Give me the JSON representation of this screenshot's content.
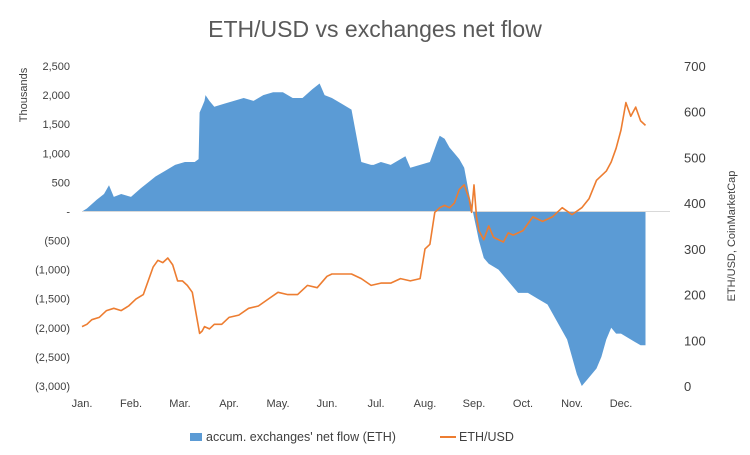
{
  "chart_data": {
    "type": "bar+line",
    "title": "ETH/USD vs exchanges net flow",
    "left_axis": {
      "label": "Thousands",
      "ylim": [
        -3000,
        2500
      ],
      "ticks": [
        2500,
        2000,
        1500,
        1000,
        500,
        0,
        -500,
        -1000,
        -1500,
        -2000,
        -2500,
        -3000
      ],
      "tick_labels": [
        "2,500",
        "2,000",
        "1,500",
        "1,000",
        "500",
        "-",
        "(500)",
        "(1,000)",
        "(1,500)",
        "(2,000)",
        "(2,500)",
        "(3,000)"
      ]
    },
    "right_axis": {
      "label": "ETH/USD, CoinMarketCap",
      "ylim": [
        0,
        700
      ],
      "ticks": [
        700,
        600,
        500,
        400,
        300,
        200,
        100,
        0
      ],
      "tick_labels": [
        "700",
        "600",
        "500",
        "400",
        "300",
        "200",
        "100",
        "0"
      ]
    },
    "x_axis": {
      "range": [
        0,
        12
      ],
      "categories": [
        "Jan.",
        "Feb.",
        "Mar.",
        "Apr.",
        "May.",
        "Jun.",
        "Jul.",
        "Aug.",
        "Sep.",
        "Oct.",
        "Nov.",
        "Dec."
      ]
    },
    "series": [
      {
        "name": "accum. exchanges' net flow (ETH)",
        "type": "area",
        "axis": "left",
        "color": "#5b9bd5",
        "x": [
          0,
          0.1,
          0.3,
          0.45,
          0.55,
          0.65,
          0.8,
          1.0,
          1.2,
          1.35,
          1.5,
          1.7,
          1.9,
          2.1,
          2.3,
          2.38,
          2.4,
          2.45,
          2.5,
          2.52,
          2.6,
          2.7,
          2.9,
          3.1,
          3.3,
          3.5,
          3.7,
          3.9,
          4.1,
          4.3,
          4.5,
          4.7,
          4.85,
          4.9,
          4.95,
          5.1,
          5.3,
          5.5,
          5.7,
          5.9,
          5.95,
          6.1,
          6.3,
          6.5,
          6.6,
          6.7,
          6.9,
          7.1,
          7.25,
          7.3,
          7.4,
          7.5,
          7.6,
          7.7,
          7.8,
          7.9,
          7.95,
          8.0,
          8.05,
          8.1,
          8.2,
          8.3,
          8.5,
          8.7,
          8.9,
          9.1,
          9.3,
          9.5,
          9.7,
          9.9,
          10.0,
          10.1,
          10.2,
          10.3,
          10.4,
          10.5,
          10.6,
          10.7,
          10.8,
          10.9,
          11.0,
          11.2,
          11.4,
          11.5
        ],
        "values": [
          0,
          50,
          200,
          300,
          450,
          250,
          300,
          250,
          400,
          500,
          600,
          700,
          800,
          850,
          850,
          900,
          1700,
          1800,
          1900,
          2000,
          1900,
          1800,
          1850,
          1900,
          1950,
          1900,
          2000,
          2050,
          2050,
          1950,
          1950,
          2100,
          2200,
          2100,
          2000,
          1950,
          1850,
          1750,
          850,
          800,
          800,
          850,
          800,
          900,
          950,
          750,
          800,
          850,
          1200,
          1300,
          1250,
          1100,
          1000,
          900,
          750,
          300,
          100,
          -100,
          -300,
          -500,
          -800,
          -900,
          -1000,
          -1200,
          -1400,
          -1400,
          -1500,
          -1600,
          -1900,
          -2200,
          -2500,
          -2800,
          -3000,
          -2900,
          -2800,
          -2700,
          -2500,
          -2200,
          -2000,
          -2100,
          -2100,
          -2200,
          -2300,
          -2300
        ]
      },
      {
        "name": "ETH/USD",
        "type": "line",
        "axis": "right",
        "color": "#ed7d31",
        "x": [
          0,
          0.1,
          0.2,
          0.35,
          0.5,
          0.65,
          0.8,
          0.95,
          1.1,
          1.25,
          1.35,
          1.45,
          1.55,
          1.65,
          1.75,
          1.85,
          1.95,
          2.05,
          2.15,
          2.25,
          2.4,
          2.45,
          2.5,
          2.6,
          2.7,
          2.85,
          3.0,
          3.2,
          3.4,
          3.6,
          3.8,
          4.0,
          4.2,
          4.4,
          4.6,
          4.8,
          5.0,
          5.1,
          5.3,
          5.5,
          5.7,
          5.9,
          6.1,
          6.3,
          6.5,
          6.7,
          6.9,
          7.0,
          7.1,
          7.2,
          7.3,
          7.4,
          7.5,
          7.6,
          7.7,
          7.8,
          7.9,
          7.95,
          8.0,
          8.05,
          8.1,
          8.2,
          8.3,
          8.4,
          8.5,
          8.6,
          8.7,
          8.8,
          8.9,
          9.0,
          9.2,
          9.4,
          9.6,
          9.8,
          10.0,
          10.2,
          10.35,
          10.5,
          10.6,
          10.7,
          10.8,
          10.9,
          11.0,
          11.1,
          11.2,
          11.3,
          11.4,
          11.5
        ],
        "values": [
          130,
          135,
          145,
          150,
          165,
          170,
          165,
          175,
          190,
          200,
          230,
          260,
          275,
          270,
          280,
          265,
          230,
          230,
          220,
          205,
          115,
          120,
          130,
          125,
          135,
          135,
          150,
          155,
          170,
          175,
          190,
          205,
          200,
          200,
          220,
          215,
          240,
          245,
          245,
          245,
          235,
          220,
          225,
          225,
          235,
          230,
          235,
          300,
          310,
          380,
          390,
          395,
          390,
          400,
          430,
          440,
          410,
          380,
          440,
          370,
          340,
          320,
          350,
          325,
          320,
          315,
          335,
          330,
          335,
          340,
          370,
          360,
          370,
          390,
          375,
          390,
          410,
          450,
          460,
          470,
          490,
          520,
          560,
          620,
          590,
          610,
          580,
          570
        ]
      }
    ],
    "legend": {
      "position": "bottom",
      "entries": [
        "accum. exchanges' net flow (ETH)",
        "ETH/USD"
      ]
    },
    "grid": false
  }
}
